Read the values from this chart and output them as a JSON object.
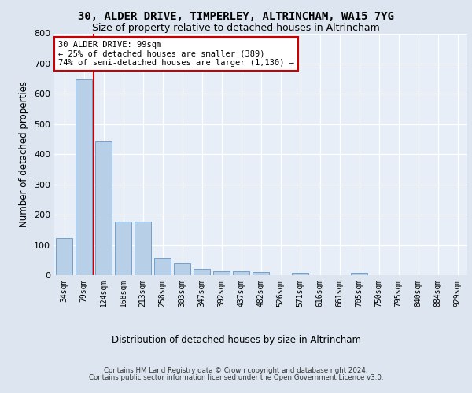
{
  "title1": "30, ALDER DRIVE, TIMPERLEY, ALTRINCHAM, WA15 7YG",
  "title2": "Size of property relative to detached houses in Altrincham",
  "xlabel": "Distribution of detached houses by size in Altrincham",
  "ylabel": "Number of detached properties",
  "categories": [
    "34sqm",
    "79sqm",
    "124sqm",
    "168sqm",
    "213sqm",
    "258sqm",
    "303sqm",
    "347sqm",
    "392sqm",
    "437sqm",
    "482sqm",
    "526sqm",
    "571sqm",
    "616sqm",
    "661sqm",
    "705sqm",
    "750sqm",
    "795sqm",
    "840sqm",
    "884sqm",
    "929sqm"
  ],
  "values": [
    122,
    648,
    441,
    178,
    178,
    57,
    40,
    22,
    12,
    13,
    11,
    0,
    8,
    0,
    0,
    8,
    0,
    0,
    0,
    0,
    0
  ],
  "bar_color": "#b8cfe8",
  "bar_edge_color": "#6496c8",
  "vline_color": "#cc0000",
  "vline_x": 1.5,
  "annotation_line1": "30 ALDER DRIVE: 99sqm",
  "annotation_line2": "← 25% of detached houses are smaller (389)",
  "annotation_line3": "74% of semi-detached houses are larger (1,130) →",
  "annotation_box_fc": "#ffffff",
  "annotation_box_ec": "#cc0000",
  "ylim": [
    0,
    800
  ],
  "yticks": [
    0,
    100,
    200,
    300,
    400,
    500,
    600,
    700,
    800
  ],
  "bg_color": "#dde6f0",
  "axes_bg_color": "#e8eef7",
  "grid_color": "#ffffff",
  "footer1": "Contains HM Land Registry data © Crown copyright and database right 2024.",
  "footer2": "Contains public sector information licensed under the Open Government Licence v3.0."
}
